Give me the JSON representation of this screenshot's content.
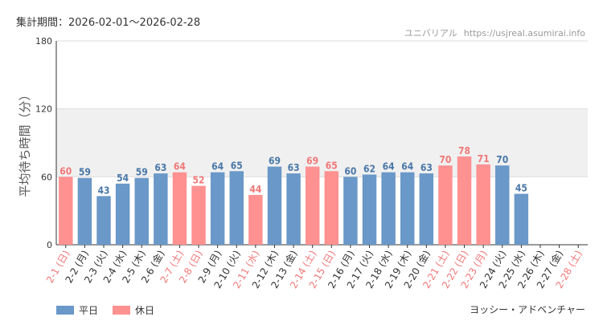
{
  "period_label": "集計期間：2026-02-01～2026-02-28",
  "credit": {
    "brand": "ユニバリアル",
    "site": "https://usjreal.asumirai.info"
  },
  "author": "ヨッシー・アドベンチャー",
  "legend": [
    {
      "label": "平日",
      "color": "#6a98c8"
    },
    {
      "label": "休日",
      "color": "#ff9191"
    }
  ],
  "chart_data": {
    "type": "bar",
    "title": "",
    "ylabel": "平均待ち時間（分）",
    "xlabel": "",
    "ylim": [
      0,
      180
    ],
    "yticks": [
      0,
      60,
      120,
      180
    ],
    "shaded_band": [
      60,
      120
    ],
    "colors": {
      "weekday": "#6a98c8",
      "holiday": "#ff9191",
      "weekday_text": "#4a78a8",
      "holiday_text": "#f07878"
    },
    "categories": [
      {
        "label": "2-1 (日)",
        "value": 60,
        "type": "holiday"
      },
      {
        "label": "2-2 (月)",
        "value": 59,
        "type": "weekday"
      },
      {
        "label": "2-3 (火)",
        "value": 43,
        "type": "weekday"
      },
      {
        "label": "2-4 (水)",
        "value": 54,
        "type": "weekday"
      },
      {
        "label": "2-5 (木)",
        "value": 59,
        "type": "weekday"
      },
      {
        "label": "2-6 (金)",
        "value": 63,
        "type": "weekday"
      },
      {
        "label": "2-7 (土)",
        "value": 64,
        "type": "holiday"
      },
      {
        "label": "2-8 (日)",
        "value": 52,
        "type": "holiday"
      },
      {
        "label": "2-9 (月)",
        "value": 64,
        "type": "weekday"
      },
      {
        "label": "2-10 (火)",
        "value": 65,
        "type": "weekday"
      },
      {
        "label": "2-11 (水)",
        "value": 44,
        "type": "holiday"
      },
      {
        "label": "2-12 (木)",
        "value": 69,
        "type": "weekday"
      },
      {
        "label": "2-13 (金)",
        "value": 63,
        "type": "weekday"
      },
      {
        "label": "2-14 (土)",
        "value": 69,
        "type": "holiday"
      },
      {
        "label": "2-15 (日)",
        "value": 65,
        "type": "holiday"
      },
      {
        "label": "2-16 (月)",
        "value": 60,
        "type": "weekday"
      },
      {
        "label": "2-17 (火)",
        "value": 62,
        "type": "weekday"
      },
      {
        "label": "2-18 (水)",
        "value": 64,
        "type": "weekday"
      },
      {
        "label": "2-19 (木)",
        "value": 64,
        "type": "weekday"
      },
      {
        "label": "2-20 (金)",
        "value": 63,
        "type": "weekday"
      },
      {
        "label": "2-21 (土)",
        "value": 70,
        "type": "holiday"
      },
      {
        "label": "2-22 (日)",
        "value": 78,
        "type": "holiday"
      },
      {
        "label": "2-23 (月)",
        "value": 71,
        "type": "holiday"
      },
      {
        "label": "2-24 (火)",
        "value": 70,
        "type": "weekday"
      },
      {
        "label": "2-25 (水)",
        "value": 45,
        "type": "weekday"
      },
      {
        "label": "2-26 (木)",
        "value": null,
        "type": "weekday"
      },
      {
        "label": "2-27 (金)",
        "value": null,
        "type": "weekday"
      },
      {
        "label": "2-28 (土)",
        "value": null,
        "type": "holiday"
      }
    ]
  }
}
